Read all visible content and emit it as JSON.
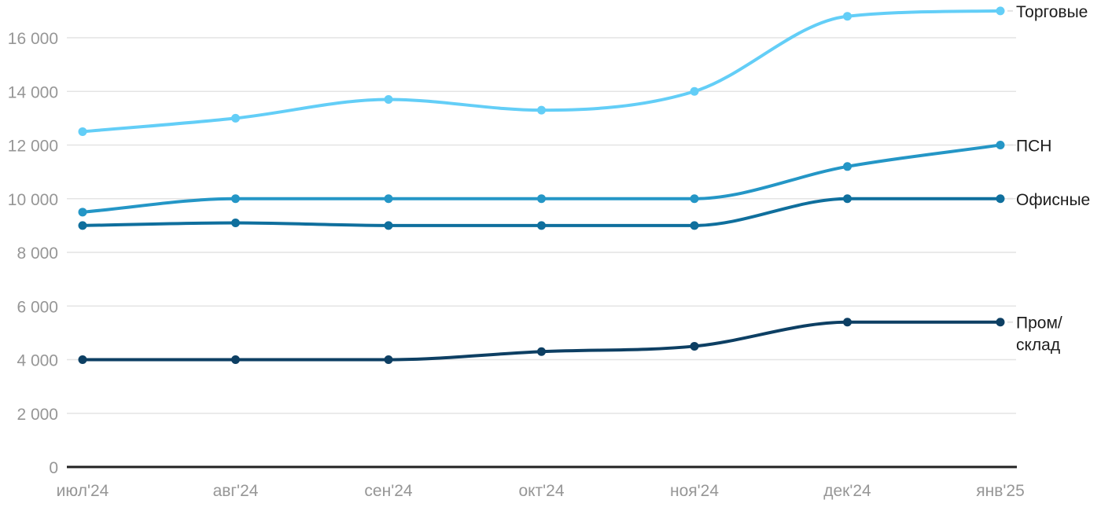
{
  "chart_data": {
    "type": "line",
    "title": "",
    "categories": [
      "июл'24",
      "авг'24",
      "сен'24",
      "окт'24",
      "ноя'24",
      "дек'24",
      "янв'25"
    ],
    "series": [
      {
        "key": "torgovye",
        "name": "Торговые",
        "label_lines": [
          "Торговые"
        ],
        "color": "#63cef7",
        "values": [
          12500,
          13000,
          13700,
          13300,
          14000,
          16800,
          17000
        ]
      },
      {
        "key": "psn",
        "name": "ПСН",
        "label_lines": [
          "ПСН"
        ],
        "color": "#2496c6",
        "values": [
          9500,
          10000,
          10000,
          10000,
          10000,
          11200,
          12000
        ]
      },
      {
        "key": "ofisnye",
        "name": "Офисные",
        "label_lines": [
          "Офисные"
        ],
        "color": "#0f6f9d",
        "values": [
          9000,
          9100,
          9000,
          9000,
          9000,
          10000,
          10000
        ]
      },
      {
        "key": "prom-sklad",
        "name": "Пром/склад",
        "label_lines": [
          "Пром/",
          "склад"
        ],
        "color": "#0d3f63",
        "values": [
          4000,
          4000,
          4000,
          4300,
          4500,
          5400,
          5400
        ]
      }
    ],
    "y_axis": {
      "ticks": [
        0,
        2000,
        4000,
        6000,
        8000,
        10000,
        12000,
        14000,
        16000
      ],
      "tick_labels": [
        "0",
        "2 000",
        "4 000",
        "6 000",
        "8 000",
        "10 000",
        "12 000",
        "14 000",
        "16 000"
      ],
      "range": [
        0,
        17400
      ]
    },
    "x_axis": {
      "labels": [
        "июл'24",
        "авг'24",
        "сен'24",
        "окт'24",
        "ноя'24",
        "дек'24",
        "янв'25"
      ]
    },
    "grid": true,
    "legend_position": "right-end-of-lines"
  },
  "colors": {
    "background": "#ffffff",
    "grid": "#e4e4e4",
    "leader": "#e2e2e2",
    "axis": "#222222",
    "tick_text": "#969696",
    "label_text": "#1c1c1c"
  }
}
